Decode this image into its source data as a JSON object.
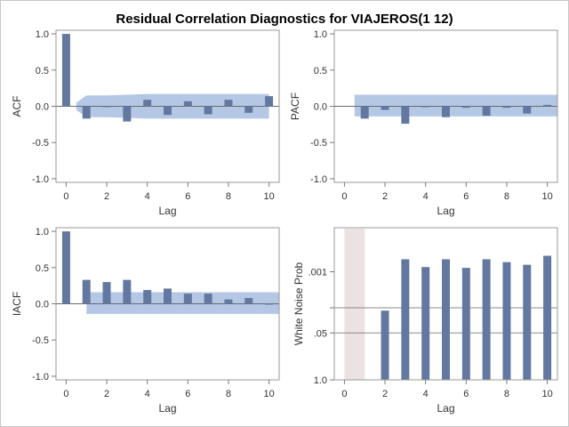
{
  "title": "Residual Correlation Diagnostics for VIAJEROS(1 12)",
  "chart_data": [
    {
      "panel": "acf",
      "type": "bar",
      "ylabel": "ACF",
      "xlabel": "Lag",
      "xlim": [
        -0.5,
        10.5
      ],
      "ylim": [
        -1.05,
        1.05
      ],
      "xticks": [
        0,
        2,
        4,
        6,
        8,
        10
      ],
      "yticks": [
        1.0,
        0.5,
        0.0,
        -0.5,
        -1.0
      ],
      "ytick_labels": [
        "1.0",
        "0.5",
        "0.0",
        "-0.5",
        "-1.0"
      ],
      "lags": [
        0,
        1,
        2,
        3,
        4,
        5,
        6,
        7,
        8,
        9,
        10
      ],
      "values": [
        1.0,
        -0.17,
        -0.01,
        -0.21,
        0.09,
        -0.12,
        0.07,
        -0.11,
        0.09,
        -0.09,
        0.14
      ],
      "band": {
        "x": [
          0.5,
          1,
          2,
          3,
          4,
          5,
          6,
          7,
          8,
          9,
          10
        ],
        "upper": [
          0.05,
          0.15,
          0.15,
          0.16,
          0.17,
          0.17,
          0.17,
          0.17,
          0.17,
          0.17,
          0.17
        ],
        "lower": [
          -0.05,
          -0.15,
          -0.15,
          -0.16,
          -0.17,
          -0.17,
          -0.17,
          -0.17,
          -0.17,
          -0.17,
          -0.17
        ]
      },
      "colors": {
        "bar": "#6378a0",
        "band": "#b4c8e6"
      }
    },
    {
      "panel": "pacf",
      "type": "bar",
      "ylabel": "PACF",
      "xlabel": "Lag",
      "xlim": [
        -0.5,
        10.5
      ],
      "ylim": [
        -1.05,
        1.05
      ],
      "xticks": [
        0,
        2,
        4,
        6,
        8,
        10
      ],
      "yticks": [
        1.0,
        0.5,
        0.0,
        -0.5,
        -1.0
      ],
      "ytick_labels": [
        "1.0",
        "0.5",
        "0.0",
        "-0.5",
        "-1.0"
      ],
      "lags": [
        1,
        2,
        3,
        4,
        5,
        6,
        7,
        8,
        9,
        10
      ],
      "values": [
        -0.17,
        -0.05,
        -0.24,
        -0.01,
        -0.15,
        -0.02,
        -0.13,
        -0.02,
        -0.1,
        0.02
      ],
      "band": {
        "x": [
          0.5,
          10.5
        ],
        "upper": [
          0.16,
          0.16
        ],
        "lower": [
          -0.14,
          -0.14
        ]
      },
      "colors": {
        "bar": "#6378a0",
        "band": "#b4c8e6"
      }
    },
    {
      "panel": "iacf",
      "type": "bar",
      "ylabel": "IACF",
      "xlabel": "Lag",
      "xlim": [
        -0.5,
        10.5
      ],
      "ylim": [
        -1.05,
        1.05
      ],
      "xticks": [
        0,
        2,
        4,
        6,
        8,
        10
      ],
      "yticks": [
        1.0,
        0.5,
        0.0,
        -0.5,
        -1.0
      ],
      "ytick_labels": [
        "1.0",
        "0.5",
        "0.0",
        "-0.5",
        "-1.0"
      ],
      "lags": [
        0,
        1,
        2,
        3,
        4,
        5,
        6,
        7,
        8,
        9,
        10
      ],
      "values": [
        1.0,
        0.33,
        0.3,
        0.33,
        0.19,
        0.21,
        0.14,
        0.14,
        0.06,
        0.08,
        -0.01
      ],
      "band": {
        "x": [
          1,
          10.5
        ],
        "upper": [
          0.16,
          0.16
        ],
        "lower": [
          -0.14,
          -0.14
        ]
      },
      "colors": {
        "bar": "#6378a0",
        "band": "#b4c8e6"
      }
    },
    {
      "panel": "white-noise",
      "type": "bar",
      "ylabel": "White Noise Prob",
      "xlabel": "Lag",
      "scale": "reverse-log",
      "xlim": [
        -0.5,
        10.5
      ],
      "ylim": [
        1.0,
        6e-05
      ],
      "xticks": [
        0,
        2,
        4,
        6,
        8,
        10
      ],
      "yticks": [
        0.001,
        0.01,
        0.05,
        1.0
      ],
      "ytick_labels": [
        ".001",
        "",
        ".05",
        "1.0"
      ],
      "reference_lines": [
        0.01,
        0.05
      ],
      "shaded_lags": [
        0,
        1
      ],
      "lags": [
        2,
        3,
        4,
        5,
        6,
        7,
        8,
        9,
        10
      ],
      "values": [
        0.012,
        0.00045,
        0.00074,
        0.00045,
        0.00078,
        0.00045,
        0.00054,
        0.00064,
        0.00036
      ],
      "colors": {
        "bar": "#6378a0",
        "shade": "#ece2e2"
      }
    }
  ]
}
